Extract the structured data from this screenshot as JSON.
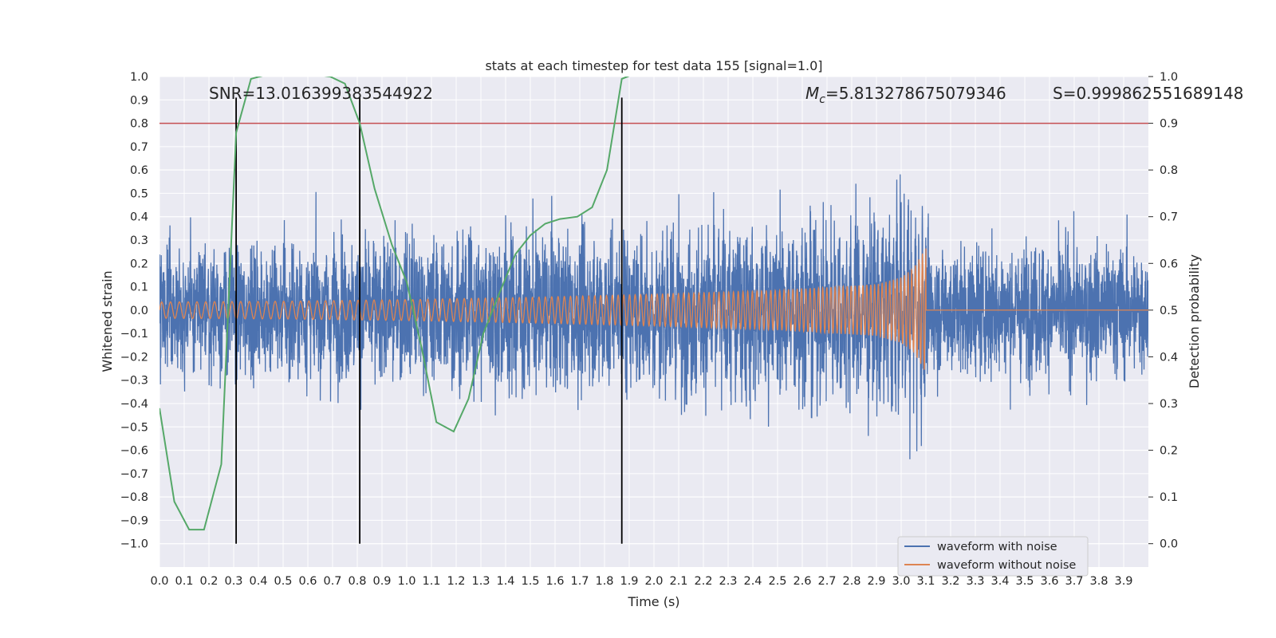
{
  "chart_data": {
    "type": "line",
    "title": "stats at each timestep for test data 155 [signal=1.0]",
    "xlabel": "Time (s)",
    "ylabel": "Whitened strain",
    "ylabel_right": "Detection probability",
    "xlim": [
      0,
      4.0
    ],
    "ylim": [
      -1.1,
      1.0
    ],
    "ylim_right": [
      -0.05,
      1.0
    ],
    "x_ticks": [
      "0.0",
      "0.1",
      "0.2",
      "0.3",
      "0.4",
      "0.5",
      "0.6",
      "0.7",
      "0.8",
      "0.9",
      "1.0",
      "1.1",
      "1.2",
      "1.3",
      "1.4",
      "1.5",
      "1.6",
      "1.7",
      "1.8",
      "1.9",
      "2.0",
      "2.1",
      "2.2",
      "2.3",
      "2.4",
      "2.5",
      "2.6",
      "2.7",
      "2.8",
      "2.9",
      "3.0",
      "3.1",
      "3.2",
      "3.3",
      "3.4",
      "3.5",
      "3.6",
      "3.7",
      "3.8",
      "3.9"
    ],
    "y_ticks": [
      "1.0",
      "0.9",
      "0.8",
      "0.7",
      "0.6",
      "0.5",
      "0.4",
      "0.3",
      "0.2",
      "0.1",
      "0.0",
      "−0.1",
      "−0.2",
      "−0.3",
      "−0.4",
      "−0.5",
      "−0.6",
      "−0.7",
      "−0.8",
      "−0.9",
      "−1.0"
    ],
    "y_ticks_right": [
      "1.0",
      "0.9",
      "0.8",
      "0.7",
      "0.6",
      "0.5",
      "0.4",
      "0.3",
      "0.2",
      "0.1",
      "0.0"
    ],
    "annotations": {
      "snr": "SNR=13.016399383544922",
      "mc_symbol": "M",
      "mc_subscript": "c",
      "mc_value": "=5.813278675079346",
      "s": "S=0.999862551689148"
    },
    "legend": {
      "position": "lower-right",
      "entries": [
        "waveform with noise",
        "waveform without noise"
      ]
    },
    "threshold_right": 0.9,
    "threshold_color": "#c44e52",
    "vertical_lines_x": [
      0.31,
      0.81,
      1.87
    ],
    "noise_envelope": {
      "x": [
        0.0,
        0.5,
        1.0,
        1.5,
        2.0,
        2.5,
        2.9,
        3.1,
        3.12,
        4.0
      ],
      "amplitude": [
        0.3,
        0.32,
        0.35,
        0.38,
        0.4,
        0.42,
        0.45,
        0.45,
        0.32,
        0.32
      ]
    },
    "clean_waveform": {
      "x": [
        0.0,
        0.5,
        1.0,
        1.5,
        2.0,
        2.5,
        2.9,
        3.0,
        3.05,
        3.09,
        3.1
      ],
      "amplitude": [
        0.035,
        0.038,
        0.045,
        0.055,
        0.068,
        0.085,
        0.11,
        0.14,
        0.18,
        0.25,
        0.27
      ],
      "freq_start_hz": 28,
      "freq_end_hz": 70,
      "merger_time": 3.1
    },
    "series": [
      {
        "name": "detection probability",
        "axis": "right",
        "color": "#55a868",
        "x": [
          0.0,
          0.06,
          0.12,
          0.18,
          0.25,
          0.31,
          0.37,
          0.44,
          0.5,
          0.56,
          0.62,
          0.69,
          0.75,
          0.81,
          0.87,
          0.94,
          1.0,
          1.06,
          1.12,
          1.19,
          1.25,
          1.31,
          1.37,
          1.44,
          1.5,
          1.56,
          1.62,
          1.69,
          1.75,
          1.81,
          1.87,
          1.94,
          2.0,
          4.0
        ],
        "y": [
          0.29,
          0.09,
          0.03,
          0.03,
          0.17,
          0.88,
          0.995,
          1.005,
          1.005,
          1.005,
          1.005,
          1.0,
          0.985,
          0.9,
          0.76,
          0.64,
          0.56,
          0.42,
          0.26,
          0.24,
          0.31,
          0.45,
          0.53,
          0.62,
          0.66,
          0.685,
          0.695,
          0.7,
          0.72,
          0.8,
          0.995,
          1.01,
          1.01,
          1.01
        ]
      }
    ]
  }
}
